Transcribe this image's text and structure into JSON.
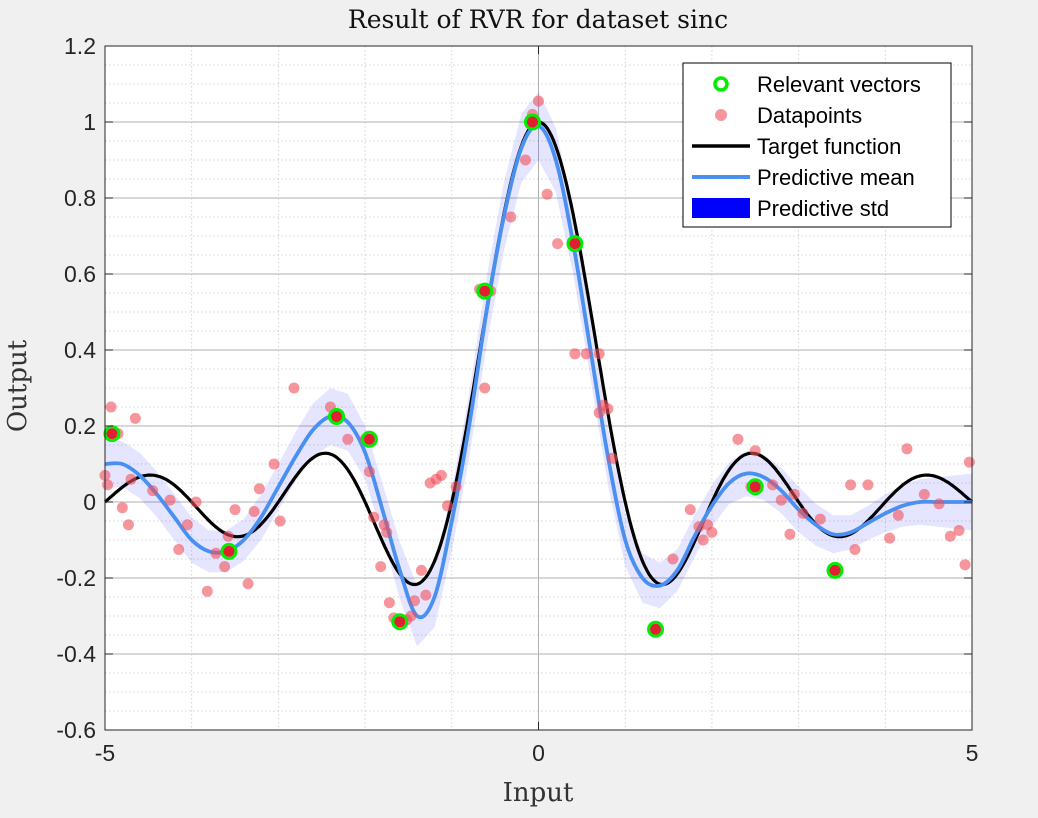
{
  "chart_data": {
    "type": "line",
    "title": "Result of RVR for dataset sinc",
    "xlabel": "Input",
    "ylabel": "Output",
    "xlim": [
      -5,
      5
    ],
    "ylim": [
      -0.6,
      1.2
    ],
    "xticks": [
      -5,
      0,
      5
    ],
    "xtick_labels": [
      "-5",
      "0",
      "5"
    ],
    "yticks": [
      -0.6,
      -0.4,
      -0.2,
      0,
      0.2,
      0.4,
      0.6,
      0.8,
      1,
      1.2
    ],
    "ytick_labels": [
      "-0.6",
      "-0.4",
      "-0.2",
      "0",
      "0.2",
      "0.4",
      "0.6",
      "0.8",
      "1",
      "1.2"
    ],
    "grid": true,
    "minor_grid": true,
    "legend_position": "top-right",
    "colors": {
      "relevant": "#00ee00",
      "datapoints": "#f0505a",
      "target": "#000000",
      "mean": "#4a90f0",
      "std": "#0000ff"
    },
    "series": [
      {
        "name": "Relevant vectors",
        "type": "scatter",
        "x": [
          -4.92,
          -3.57,
          -2.33,
          -1.95,
          -1.6,
          -0.62,
          -0.07,
          0.42,
          1.35,
          2.5,
          3.42
        ],
        "y": [
          0.18,
          -0.13,
          0.225,
          0.165,
          -0.315,
          0.555,
          1.0,
          0.68,
          -0.335,
          0.04,
          -0.18
        ]
      },
      {
        "name": "Datapoints",
        "type": "scatter",
        "x": [
          -5.0,
          -4.97,
          -4.93,
          -4.85,
          -4.8,
          -4.73,
          -4.7,
          -4.65,
          -4.45,
          -4.25,
          -4.15,
          -4.05,
          -3.95,
          -3.82,
          -3.72,
          -3.62,
          -3.58,
          -3.57,
          -3.5,
          -3.35,
          -3.28,
          -3.22,
          -3.05,
          -2.98,
          -2.82,
          -2.4,
          -2.33,
          -2.3,
          -2.2,
          -2.0,
          -1.95,
          -1.9,
          -1.82,
          -1.78,
          -1.75,
          -1.72,
          -1.67,
          -1.6,
          -1.52,
          -1.47,
          -1.43,
          -1.35,
          -1.3,
          -1.25,
          -1.18,
          -1.12,
          -1.05,
          -0.95,
          -0.68,
          -0.62,
          -0.55,
          -0.32,
          -0.15,
          -0.1,
          -0.07,
          -0.05,
          0.0,
          0.1,
          0.22,
          0.42,
          0.55,
          0.7,
          0.75,
          0.8,
          0.85,
          0.7,
          1.35,
          1.55,
          1.75,
          1.85,
          1.9,
          1.95,
          2.0,
          2.3,
          2.45,
          2.5,
          2.7,
          2.8,
          2.9,
          2.95,
          3.05,
          3.25,
          3.4,
          3.45,
          3.6,
          3.65,
          3.8,
          4.05,
          4.15,
          4.25,
          4.45,
          4.62,
          4.75,
          4.85,
          4.92,
          4.97
        ],
        "y": [
          0.07,
          0.045,
          0.25,
          0.18,
          -0.015,
          -0.06,
          0.06,
          0.22,
          0.03,
          0.005,
          -0.125,
          -0.06,
          0.0,
          -0.235,
          -0.135,
          -0.17,
          -0.09,
          -0.13,
          -0.02,
          -0.215,
          -0.025,
          0.035,
          0.1,
          -0.05,
          0.3,
          0.25,
          0.225,
          0.23,
          0.165,
          0.165,
          0.08,
          -0.04,
          -0.17,
          -0.06,
          -0.08,
          -0.265,
          -0.305,
          -0.315,
          -0.31,
          -0.3,
          -0.26,
          -0.18,
          -0.245,
          0.05,
          0.06,
          0.07,
          -0.01,
          0.04,
          0.56,
          0.3,
          0.555,
          0.75,
          0.9,
          1.0,
          1.02,
          1.0,
          1.055,
          0.81,
          0.68,
          0.39,
          0.39,
          0.235,
          0.255,
          0.245,
          0.115,
          0.39,
          -0.335,
          -0.15,
          -0.02,
          -0.065,
          -0.1,
          -0.06,
          -0.08,
          0.165,
          0.04,
          0.135,
          0.045,
          0.005,
          -0.085,
          0.02,
          -0.03,
          -0.045,
          -0.18,
          -0.175,
          0.045,
          -0.125,
          0.045,
          -0.095,
          -0.035,
          0.14,
          0.02,
          -0.005,
          -0.09,
          -0.075,
          -0.165,
          0.105
        ]
      },
      {
        "name": "Target function",
        "type": "line",
        "function": "sinc"
      },
      {
        "name": "Predictive mean",
        "type": "line",
        "x": [
          -5,
          -4.8,
          -4.6,
          -4.4,
          -4.2,
          -4.0,
          -3.8,
          -3.6,
          -3.4,
          -3.2,
          -3.0,
          -2.8,
          -2.6,
          -2.4,
          -2.2,
          -2.0,
          -1.8,
          -1.6,
          -1.4,
          -1.2,
          -1.0,
          -0.8,
          -0.6,
          -0.4,
          -0.2,
          0.0,
          0.2,
          0.4,
          0.6,
          0.8,
          1.0,
          1.2,
          1.4,
          1.6,
          1.8,
          2.0,
          2.2,
          2.4,
          2.6,
          2.8,
          3.0,
          3.2,
          3.4,
          3.6,
          3.8,
          4.0,
          4.2,
          4.4,
          4.6,
          4.8,
          5.0
        ],
        "y": [
          0.1,
          0.1,
          0.07,
          0.02,
          -0.04,
          -0.1,
          -0.13,
          -0.13,
          -0.1,
          -0.04,
          0.04,
          0.12,
          0.19,
          0.225,
          0.21,
          0.13,
          -0.02,
          -0.18,
          -0.3,
          -0.25,
          -0.05,
          0.2,
          0.5,
          0.75,
          0.93,
          0.99,
          0.9,
          0.68,
          0.4,
          0.12,
          -0.1,
          -0.2,
          -0.22,
          -0.18,
          -0.09,
          -0.01,
          0.05,
          0.075,
          0.065,
          0.03,
          -0.02,
          -0.06,
          -0.085,
          -0.08,
          -0.055,
          -0.03,
          -0.01,
          0.0,
          0.0,
          0.0,
          0.0
        ]
      },
      {
        "name": "Predictive std",
        "type": "area",
        "x": [
          -5,
          -4.8,
          -4.6,
          -4.4,
          -4.2,
          -4.0,
          -3.8,
          -3.6,
          -3.4,
          -3.2,
          -3.0,
          -2.8,
          -2.6,
          -2.4,
          -2.2,
          -2.0,
          -1.8,
          -1.6,
          -1.4,
          -1.2,
          -1.0,
          -0.8,
          -0.6,
          -0.4,
          -0.2,
          0.0,
          0.2,
          0.4,
          0.6,
          0.8,
          1.0,
          1.2,
          1.4,
          1.6,
          1.8,
          2.0,
          2.2,
          2.4,
          2.6,
          2.8,
          3.0,
          3.2,
          3.4,
          3.6,
          3.8,
          4.0,
          4.2,
          4.4,
          4.6,
          4.8,
          5.0
        ],
        "std": [
          0.065,
          0.06,
          0.06,
          0.06,
          0.06,
          0.06,
          0.055,
          0.055,
          0.055,
          0.06,
          0.06,
          0.065,
          0.07,
          0.075,
          0.075,
          0.07,
          0.07,
          0.075,
          0.08,
          0.08,
          0.08,
          0.085,
          0.09,
          0.09,
          0.09,
          0.09,
          0.085,
          0.08,
          0.075,
          0.075,
          0.07,
          0.065,
          0.06,
          0.055,
          0.055,
          0.055,
          0.055,
          0.06,
          0.06,
          0.06,
          0.06,
          0.055,
          0.05,
          0.045,
          0.045,
          0.05,
          0.055,
          0.06,
          0.065,
          0.07,
          0.075
        ]
      }
    ]
  }
}
